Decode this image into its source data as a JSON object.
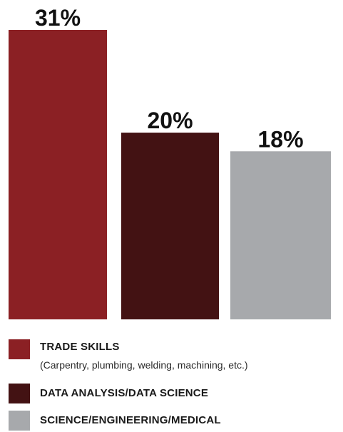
{
  "chart_data": {
    "type": "bar",
    "categories": [
      "TRADE SKILLS",
      "DATA ANALYSIS/DATA SCIENCE",
      "SCIENCE/ENGINEERING/MEDICAL"
    ],
    "values": [
      31,
      20,
      18
    ],
    "data_labels": [
      "31%",
      "20%",
      "18%"
    ],
    "colors": [
      "#8b2024",
      "#431213",
      "#a7a9ac"
    ],
    "unit": "%",
    "ylim": [
      0,
      31
    ],
    "grid": false,
    "legend_position": "bottom"
  },
  "legend": {
    "items": [
      {
        "label": "TRADE SKILLS",
        "sublabel": "(Carpentry, plumbing, welding, machining, etc.)",
        "color": "#8b2024"
      },
      {
        "label": "DATA ANALYSIS/DATA SCIENCE",
        "color": "#431213"
      },
      {
        "label": "SCIENCE/ENGINEERING/MEDICAL",
        "color": "#a7a9ac"
      }
    ]
  }
}
